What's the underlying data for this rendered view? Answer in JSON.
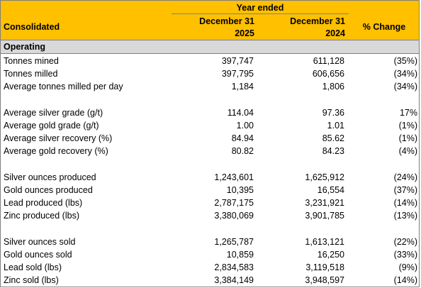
{
  "header": {
    "group_title": "Year ended",
    "label": "Consolidated",
    "col1_line1": "December 31",
    "col1_line2": "2025",
    "col2_line1": "December 31",
    "col2_line2": "2024",
    "col3": "% Change"
  },
  "section_title": "Operating",
  "rows": [
    {
      "label": "Tonnes mined",
      "v2025": "397,747",
      "v2024": "611,128",
      "change": "(35%)"
    },
    {
      "label": "Tonnes milled",
      "v2025": "397,795",
      "v2024": "606,656",
      "change": "(34%)"
    },
    {
      "label": "Average tonnes milled per day",
      "v2025": "1,184",
      "v2024": "1,806",
      "change": "(34%)"
    },
    {
      "label": "Average silver grade (g/t)",
      "v2025": "114.04",
      "v2024": "97.36",
      "change": "17%"
    },
    {
      "label": "Average gold grade (g/t)",
      "v2025": "1.00",
      "v2024": "1.01",
      "change": "(1%)"
    },
    {
      "label": "Average silver recovery (%)",
      "v2025": "84.94",
      "v2024": "85.62",
      "change": "(1%)"
    },
    {
      "label": "Average gold recovery (%)",
      "v2025": "80.82",
      "v2024": "84.23",
      "change": "(4%)"
    },
    {
      "label": "Silver ounces produced",
      "v2025": "1,243,601",
      "v2024": "1,625,912",
      "change": "(24%)"
    },
    {
      "label": "Gold ounces produced",
      "v2025": "10,395",
      "v2024": "16,554",
      "change": "(37%)"
    },
    {
      "label": "Lead produced (lbs)",
      "v2025": "2,787,175",
      "v2024": "3,231,921",
      "change": "(14%)"
    },
    {
      "label": "Zinc produced (lbs)",
      "v2025": "3,380,069",
      "v2024": "3,901,785",
      "change": "(13%)"
    },
    {
      "label": "Silver ounces sold",
      "v2025": "1,265,787",
      "v2024": "1,613,121",
      "change": "(22%)"
    },
    {
      "label": "Gold ounces sold",
      "v2025": "10,859",
      "v2024": "16,250",
      "change": "(33%)"
    },
    {
      "label": "Lead sold (lbs)",
      "v2025": "2,834,583",
      "v2024": "3,119,518",
      "change": "(9%)"
    },
    {
      "label": "Zinc sold (lbs)",
      "v2025": "3,384,149",
      "v2024": "3,948,597",
      "change": "(14%)"
    }
  ]
}
